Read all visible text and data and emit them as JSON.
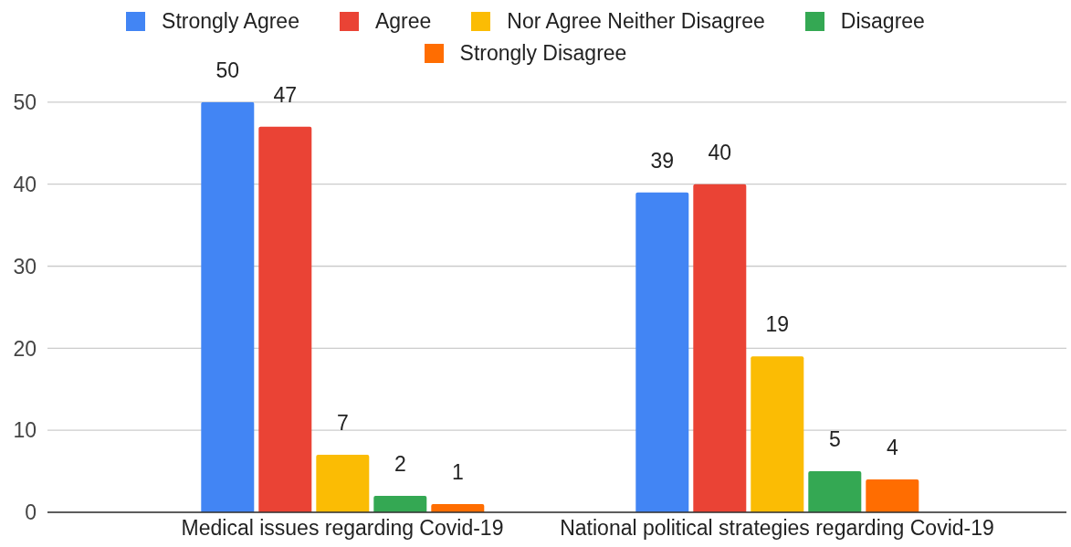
{
  "chart_data": {
    "type": "bar",
    "categories": [
      "Medical issues regarding Covid-19",
      "National political strategies regarding Covid-19"
    ],
    "series": [
      {
        "name": "Strongly Agree",
        "color": "#4285f4",
        "values": [
          50,
          39
        ]
      },
      {
        "name": "Agree",
        "color": "#ea4335",
        "values": [
          47,
          40
        ]
      },
      {
        "name": "Nor Agree Neither Disagree",
        "color": "#fbbc04",
        "values": [
          7,
          19
        ]
      },
      {
        "name": "Disagree",
        "color": "#34a853",
        "values": [
          2,
          5
        ]
      },
      {
        "name": "Strongly Disagree",
        "color": "#ff6d01",
        "values": [
          1,
          4
        ]
      }
    ],
    "ylim": [
      0,
      50
    ],
    "yticks": [
      0,
      10,
      20,
      30,
      40,
      50
    ],
    "grid": "y",
    "legend": "top",
    "data_labels": true
  }
}
